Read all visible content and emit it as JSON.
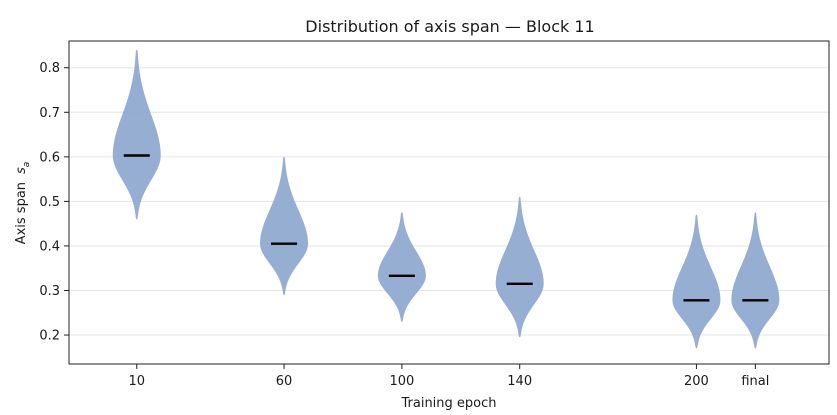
{
  "chart_data": {
    "type": "violin",
    "title": "Distribution of axis span — Block 11",
    "xlabel": "Training epoch",
    "ylabel": "Axis span",
    "ylabel_symbol": "s",
    "ylabel_subscript": "a",
    "ylim": [
      0.135,
      0.86
    ],
    "yticks": [
      0.2,
      0.3,
      0.4,
      0.5,
      0.6,
      0.7,
      0.8
    ],
    "ytick_labels": [
      "0.2",
      "0.3",
      "0.4",
      "0.5",
      "0.6",
      "0.7",
      "0.8"
    ],
    "grid": "horizontal",
    "color": "#8aa5cd",
    "median_color": "#000000",
    "xticks": [
      {
        "position": 10,
        "label": "10"
      },
      {
        "position": 60,
        "label": "60"
      },
      {
        "position": 100,
        "label": "100"
      },
      {
        "position": 140,
        "label": "140"
      },
      {
        "position": 200,
        "label": "200"
      },
      {
        "position": 220,
        "label": "final"
      }
    ],
    "xlim": [
      -13,
      245
    ],
    "violins": [
      {
        "x": 10,
        "label": "10",
        "median": 0.603,
        "min": 0.46,
        "max": 0.84
      },
      {
        "x": 60,
        "label": "60",
        "median": 0.405,
        "min": 0.29,
        "max": 0.6
      },
      {
        "x": 100,
        "label": "100",
        "median": 0.333,
        "min": 0.23,
        "max": 0.475
      },
      {
        "x": 140,
        "label": "140",
        "median": 0.315,
        "min": 0.195,
        "max": 0.51
      },
      {
        "x": 200,
        "label": "200",
        "median": 0.278,
        "min": 0.17,
        "max": 0.47
      },
      {
        "x": 220,
        "label": "final",
        "median": 0.278,
        "min": 0.17,
        "max": 0.475
      }
    ]
  }
}
